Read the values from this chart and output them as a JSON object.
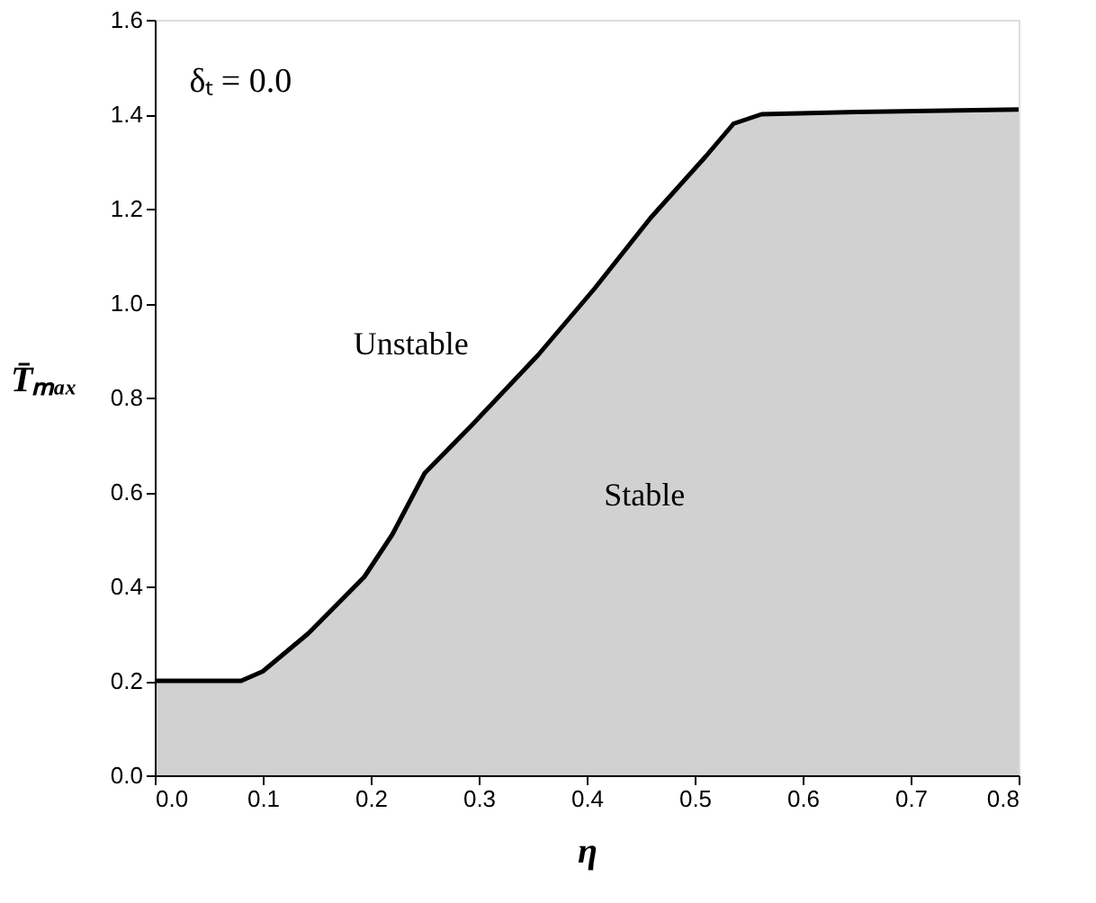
{
  "chart_data": {
    "type": "area",
    "xlabel": "η",
    "ylabel": "T̄ₘₐₓ",
    "annotations": [
      "δₜ = 0.0",
      "Unstable",
      "Stable"
    ],
    "x": [
      0.0,
      0.08,
      0.1,
      0.142,
      0.194,
      0.22,
      0.25,
      0.293,
      0.355,
      0.407,
      0.459,
      0.51,
      0.536,
      0.562,
      0.65,
      0.8
    ],
    "series": [
      {
        "color": "#000000",
        "values": [
          0.2,
          0.2,
          0.22,
          0.3,
          0.42,
          0.51,
          0.64,
          0.74,
          0.89,
          1.03,
          1.18,
          1.31,
          1.38,
          1.4,
          1.405,
          1.41
        ]
      }
    ],
    "xlim": [
      0.0,
      0.8
    ],
    "ylim": [
      0.0,
      1.6
    ],
    "xticks": [
      {
        "value": 0,
        "label": "0.0"
      },
      0.1,
      0.2,
      0.3,
      0.4,
      0.5,
      0.6,
      0.7,
      0.8
    ],
    "yticks": [
      {
        "value": 0,
        "label": "0.0"
      },
      0.2,
      0.4,
      0.6,
      0.8,
      {
        "value": 1,
        "label": "1.0"
      },
      1.2,
      1.4,
      1.6
    ],
    "grid": false
  }
}
